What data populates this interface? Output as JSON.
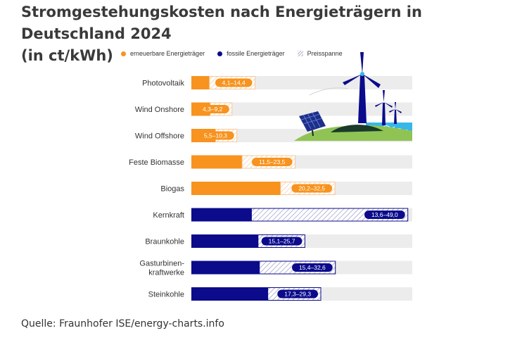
{
  "title": "Stromgestehungskosten nach Energieträgern in Deutschland 2024",
  "subtitle": "(in ct/kWh)",
  "legend": {
    "renewable": "erneuerbare Energieträger",
    "fossil": "fossile Energieträger",
    "range": "Preisspanne"
  },
  "source": "Quelle: Fraunhofer ISE/energy-charts.info",
  "colors": {
    "renewable": "#f7931e",
    "fossil": "#0b0b8c",
    "background_bar": "#ececec",
    "hatch_fossil": "#9a9ac8",
    "hatch_renewable": "#f6c89a"
  },
  "illustration": [
    "wind-turbine-icon",
    "solar-panel-icon"
  ],
  "chart_data": {
    "type": "bar",
    "orientation": "horizontal",
    "stacking": "range",
    "categories": [
      "Photovoltaik",
      "Wind Onshore",
      "Wind Offshore",
      "Feste Biomasse",
      "Biogas",
      "Kernkraft",
      "Braunkohle",
      "Gasturbinen-kraftwerke",
      "Steinkohle"
    ],
    "category_lines": [
      [
        "Photovoltaik"
      ],
      [
        "Wind Onshore"
      ],
      [
        "Wind Offshore"
      ],
      [
        "Feste Biomasse"
      ],
      [
        "Biogas"
      ],
      [
        "Kernkraft"
      ],
      [
        "Braunkohle"
      ],
      [
        "Gasturbinen-",
        "kraftwerke"
      ],
      [
        "Steinkohle"
      ]
    ],
    "series": [
      {
        "name": "erneuerbare Energieträger",
        "min": [
          4.1,
          4.3,
          5.5,
          11.5,
          20.2,
          null,
          null,
          null,
          null
        ],
        "max": [
          14.4,
          9.2,
          10.3,
          23.5,
          32.5,
          null,
          null,
          null,
          null
        ]
      },
      {
        "name": "fossile Energieträger",
        "min": [
          null,
          null,
          null,
          null,
          null,
          13.6,
          15.1,
          15.4,
          17.3
        ],
        "max": [
          null,
          null,
          null,
          null,
          null,
          49.0,
          25.7,
          32.6,
          29.3
        ]
      }
    ],
    "labels": [
      "4,1–14,4",
      "4,3–9,2",
      "5,5–10,3",
      "11,5–23,5",
      "20,2–32,5",
      "13,6–49,0",
      "15,1–25,7",
      "15,4–32,6",
      "17,3–29,3"
    ],
    "xlim": [
      0,
      50
    ],
    "grid": false,
    "legend_position": "top"
  }
}
